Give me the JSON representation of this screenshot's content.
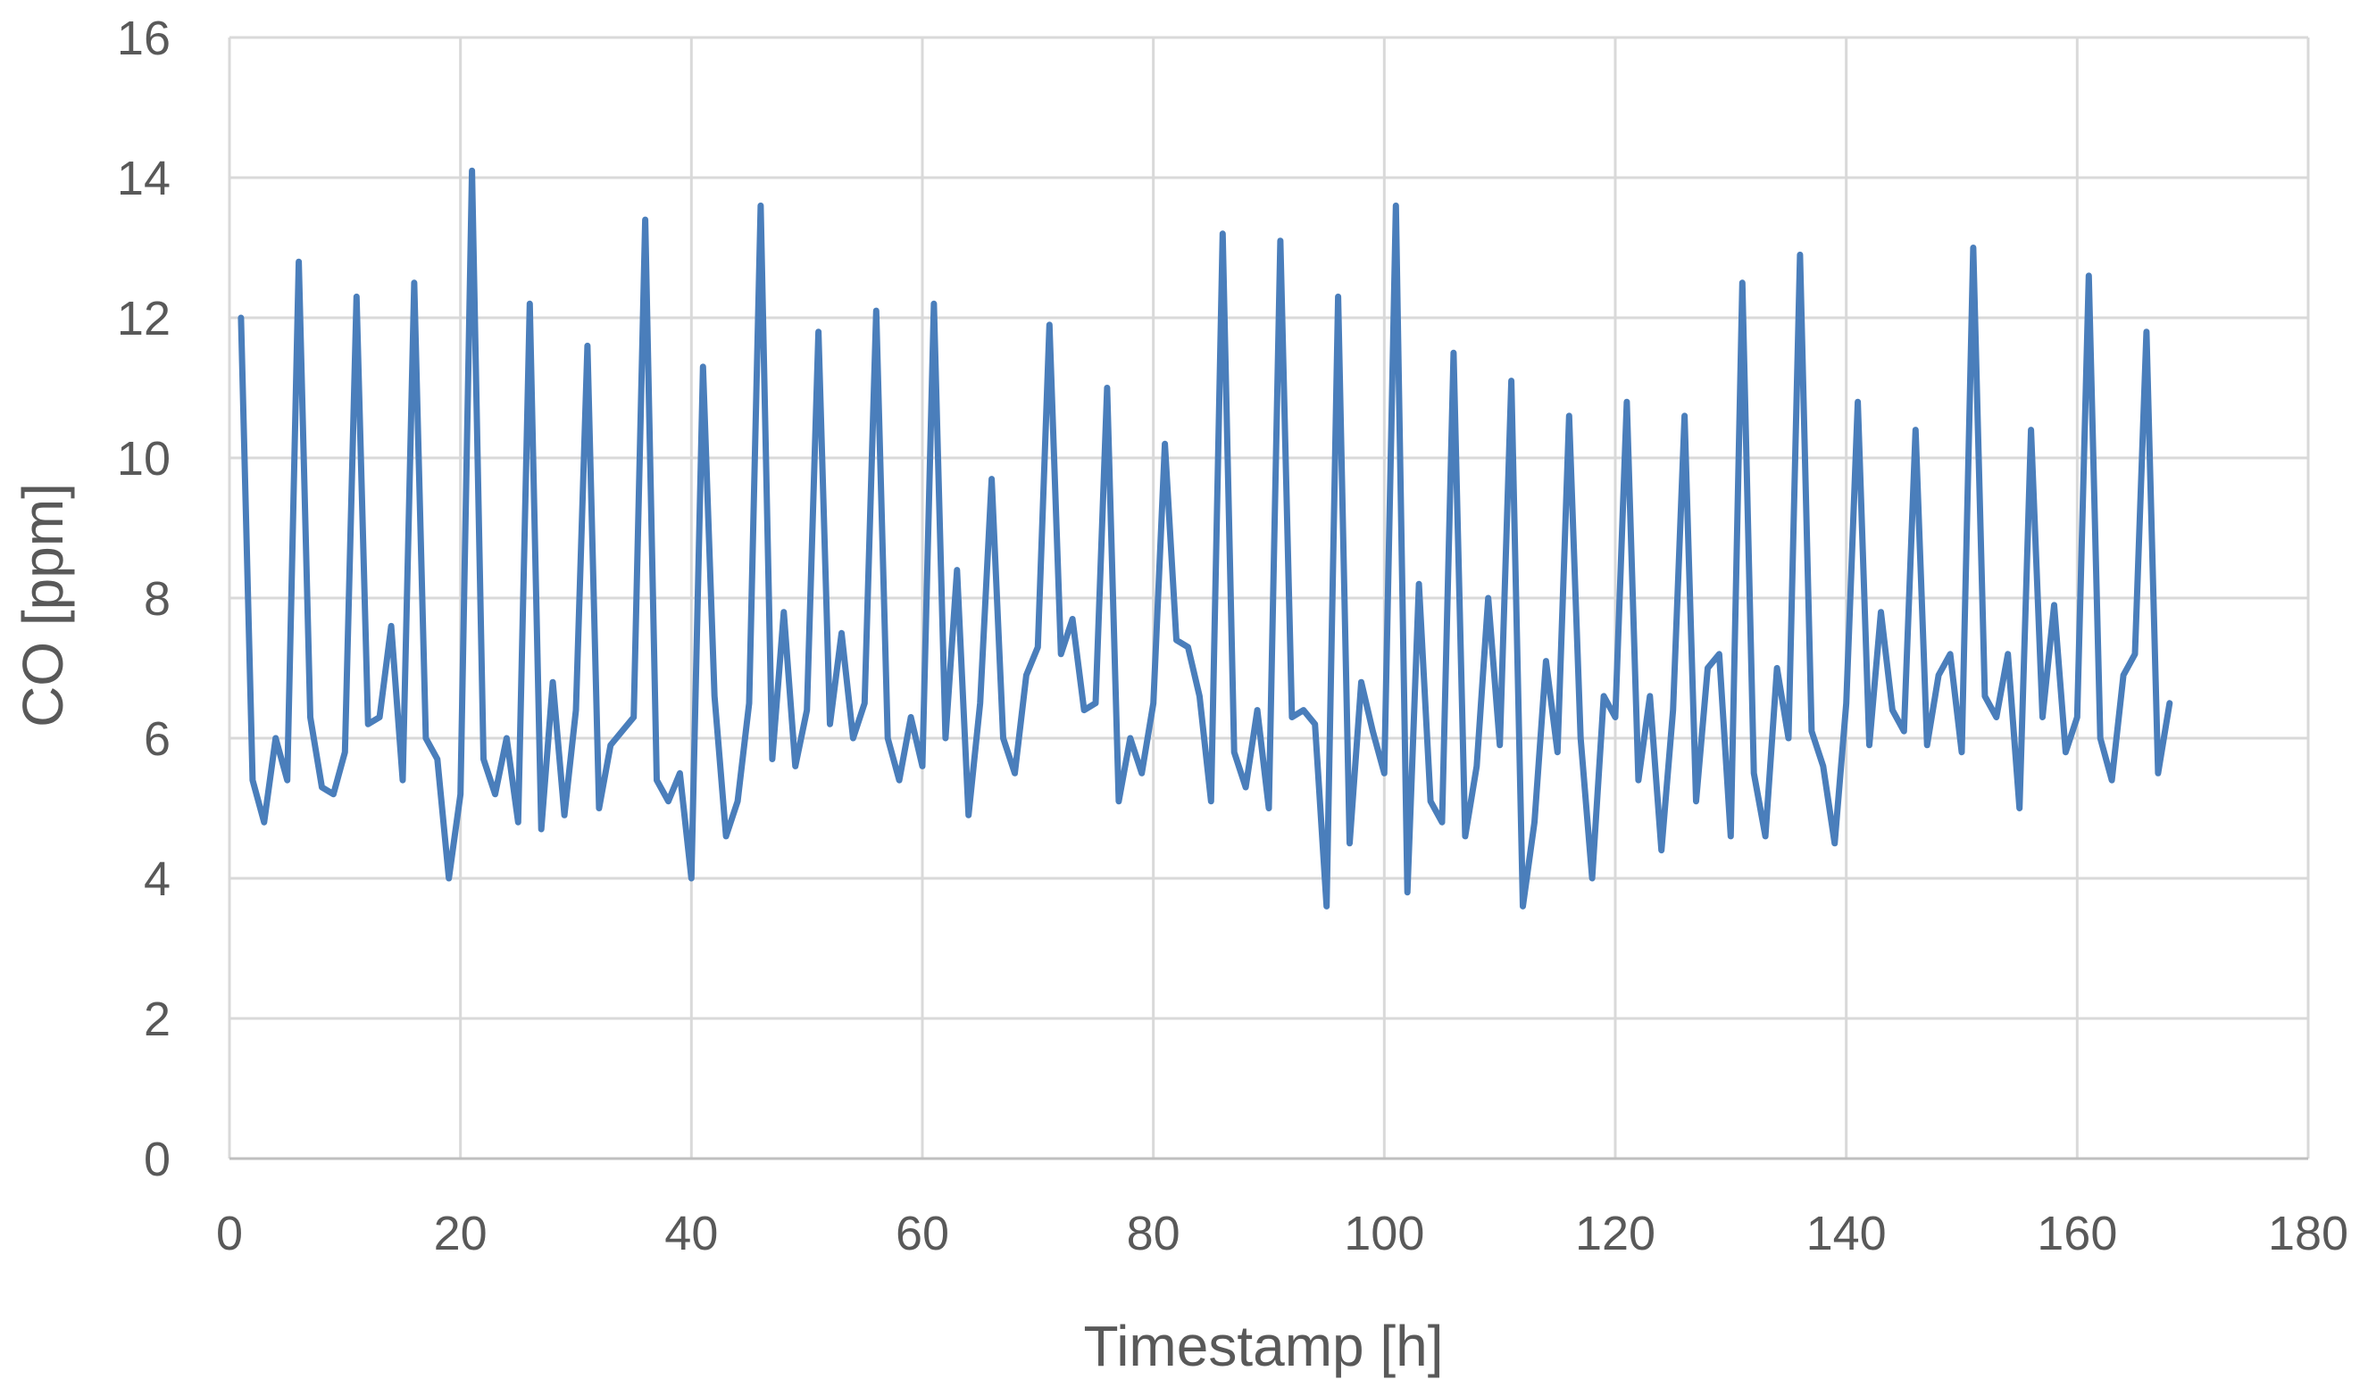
{
  "chart_data": {
    "type": "line",
    "title": "",
    "xlabel": "Timestamp [h]",
    "ylabel": "CO [ppm]",
    "xlim": [
      0,
      180
    ],
    "ylim": [
      0,
      16
    ],
    "x_ticks": [
      0,
      20,
      40,
      60,
      80,
      100,
      120,
      140,
      160,
      180
    ],
    "y_ticks": [
      0,
      2,
      4,
      6,
      8,
      10,
      12,
      14,
      16
    ],
    "grid": true,
    "legend": "none",
    "line_color": "#4a7ebb",
    "series": [
      {
        "x": [
          1,
          2,
          3,
          4,
          5,
          6,
          7,
          8,
          9,
          10,
          11,
          12,
          13,
          14,
          15,
          16,
          17,
          18,
          19,
          20,
          21,
          22,
          23,
          24,
          25,
          26,
          27,
          28,
          29,
          30,
          31,
          32,
          33,
          34,
          35,
          36,
          37,
          38,
          39,
          40,
          41,
          42,
          43,
          44,
          45,
          46,
          47,
          48,
          49,
          50,
          51,
          52,
          53,
          54,
          55,
          56,
          57,
          58,
          59,
          60,
          61,
          62,
          63,
          64,
          65,
          66,
          67,
          68,
          69,
          70,
          71,
          72,
          73,
          74,
          75,
          76,
          77,
          78,
          79,
          80,
          81,
          82,
          83,
          84,
          85,
          86,
          87,
          88,
          89,
          90,
          91,
          92,
          93,
          94,
          95,
          96,
          97,
          98,
          99,
          100,
          101,
          102,
          103,
          104,
          105,
          106,
          107,
          108,
          109,
          110,
          111,
          112,
          113,
          114,
          115,
          116,
          117,
          118,
          119,
          120,
          121,
          122,
          123,
          124,
          125,
          126,
          127,
          128,
          129,
          130,
          131,
          132,
          133,
          134,
          135,
          136,
          137,
          138,
          139,
          140,
          141,
          142,
          143,
          144,
          145,
          146,
          147,
          148,
          149,
          150,
          151,
          152,
          153,
          154,
          155,
          156,
          157,
          158,
          159,
          160,
          161,
          162,
          163,
          164,
          165,
          166,
          167,
          168
        ],
        "y": [
          12.0,
          5.4,
          4.8,
          6.0,
          5.4,
          12.8,
          6.3,
          5.3,
          5.2,
          5.8,
          12.3,
          6.2,
          6.3,
          7.6,
          5.4,
          12.5,
          6.0,
          5.7,
          4.0,
          5.2,
          14.1,
          5.7,
          5.2,
          6.0,
          4.8,
          12.2,
          4.7,
          6.8,
          4.9,
          6.4,
          11.6,
          5.0,
          5.9,
          6.1,
          6.3,
          13.4,
          5.4,
          5.1,
          5.5,
          4.0,
          11.3,
          6.6,
          4.6,
          5.1,
          6.5,
          13.6,
          5.7,
          7.8,
          5.6,
          6.4,
          11.8,
          6.2,
          7.5,
          6.0,
          6.5,
          12.1,
          6.0,
          5.4,
          6.3,
          5.6,
          12.2,
          6.0,
          8.4,
          4.9,
          6.5,
          9.7,
          6.0,
          5.5,
          6.9,
          7.3,
          11.9,
          7.2,
          7.7,
          6.4,
          6.5,
          11.0,
          5.1,
          6.0,
          5.5,
          6.5,
          10.2,
          7.4,
          7.3,
          6.6,
          5.1,
          13.2,
          5.8,
          5.3,
          6.4,
          5.0,
          13.1,
          6.3,
          6.4,
          6.2,
          3.6,
          12.3,
          4.5,
          6.8,
          6.1,
          5.5,
          13.6,
          3.8,
          8.2,
          5.1,
          4.8,
          11.5,
          4.6,
          5.6,
          8.0,
          5.9,
          11.1,
          3.6,
          4.8,
          7.1,
          5.8,
          10.6,
          6.0,
          4.0,
          6.6,
          6.3,
          10.8,
          5.4,
          6.6,
          4.4,
          6.4,
          10.6,
          5.1,
          7.0,
          7.2,
          4.6,
          12.5,
          5.5,
          4.6,
          7.0,
          6.0,
          12.9,
          6.1,
          5.6,
          4.5,
          6.5,
          10.8,
          5.9,
          7.8,
          6.4,
          6.1,
          10.4,
          5.9,
          6.9,
          7.2,
          5.8,
          13.0,
          6.6,
          6.3,
          7.2,
          5.0,
          10.4,
          6.3,
          7.9,
          5.8,
          6.3,
          12.6,
          6.0,
          5.4,
          6.9,
          7.2,
          11.8,
          5.5,
          6.5
        ]
      }
    ]
  }
}
